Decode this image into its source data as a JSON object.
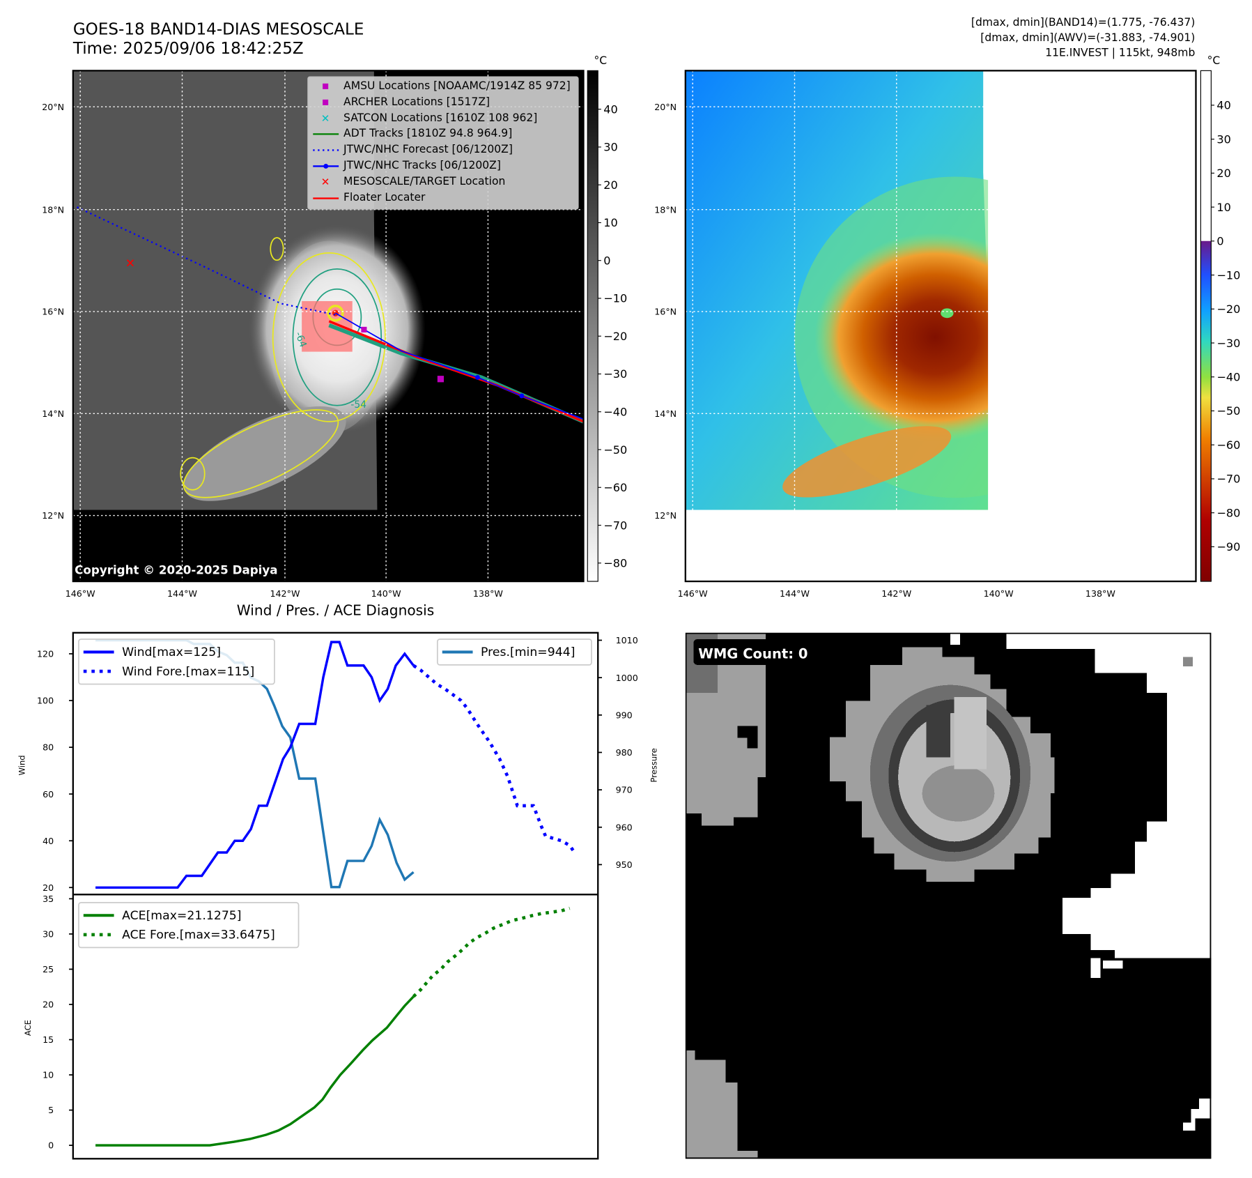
{
  "header": {
    "title": "GOES-18 BAND14-DIAS MESOSCALE",
    "time": "Time: 2025/09/06 18:42:25Z",
    "info": [
      "[dmax, dmin](BAND14)=(1.775, -76.437)",
      "[dmax, dmin](AWV)=(-31.883, -74.901)",
      "11E.INVEST | 115kt, 948mb"
    ]
  },
  "maps": {
    "lat_labels": [
      "20°N",
      "18°N",
      "16°N",
      "14°N",
      "12°N"
    ],
    "lon_labels": [
      "146°W",
      "144°W",
      "142°W",
      "140°W",
      "138°W"
    ],
    "unit": "°C",
    "ir_colorbar_ticks": [
      "40",
      "30",
      "20",
      "10",
      "0",
      "−10",
      "−20",
      "−30",
      "−40",
      "−50",
      "−60",
      "−70",
      "−80"
    ],
    "awv_colorbar_ticks": [
      "40",
      "30",
      "20",
      "10",
      "0",
      "−10",
      "−20",
      "−30",
      "−40",
      "−50",
      "−60",
      "−70",
      "−80",
      "−90"
    ],
    "copyright": "Copyright © 2020-2025 Dapiya",
    "contour_labels": [
      "-64",
      "-54"
    ],
    "legend": [
      {
        "label": "AMSU Locations [NOAAMC/1914Z 85 972]",
        "marker": "square",
        "color": "#c000c0"
      },
      {
        "label": "ARCHER Locations [1517Z]",
        "marker": "square",
        "color": "#c000c0"
      },
      {
        "label": "SATCON Locations [1610Z 108 962]",
        "marker": "x",
        "color": "#00c0c0"
      },
      {
        "label": "ADT Tracks [1810Z 94.8 964.9]",
        "marker": "line",
        "color": "#008000"
      },
      {
        "label": "JTWC/NHC Forecast [06/1200Z]",
        "marker": "dotted",
        "color": "#0000ff"
      },
      {
        "label": "JTWC/NHC Tracks [06/1200Z]",
        "marker": "line-dot",
        "color": "#0000ff"
      },
      {
        "label": "MESOSCALE/TARGET Location",
        "marker": "x",
        "color": "#ff0000"
      },
      {
        "label": "Floater Locater",
        "marker": "line",
        "color": "#ff0000"
      }
    ]
  },
  "wmg": {
    "label": "WMG Count: 0"
  },
  "chart_data": [
    {
      "type": "line",
      "title": "Wind / Pres. / ACE Diagnosis",
      "ylabel": "Wind",
      "y2label": "Pressure",
      "ylim": [
        17,
        129
      ],
      "y2lim": [
        942,
        1012
      ],
      "yticks": [
        "20",
        "40",
        "60",
        "80",
        "100",
        "120"
      ],
      "y2ticks": [
        "950",
        "960",
        "970",
        "980",
        "990",
        "1000",
        "1010"
      ],
      "legend": [
        "Wind[max=125]",
        "Wind Fore.[max=115]",
        "Pres.[min=944]"
      ],
      "colors": {
        "wind": "#0000ff",
        "pres": "#1f77b4"
      },
      "wind": [
        [
          0,
          20
        ],
        [
          10.2,
          20
        ],
        [
          11.3,
          25
        ],
        [
          13.2,
          25
        ],
        [
          15.2,
          35
        ],
        [
          16.3,
          35
        ],
        [
          17.3,
          40
        ],
        [
          18.3,
          40
        ],
        [
          19.3,
          45
        ],
        [
          20.3,
          55
        ],
        [
          21.3,
          55
        ],
        [
          23.3,
          75
        ],
        [
          24.2,
          80
        ],
        [
          25.3,
          90
        ],
        [
          27.3,
          90
        ],
        [
          28.3,
          110
        ],
        [
          29.3,
          125
        ],
        [
          30.3,
          125
        ],
        [
          31.3,
          115
        ],
        [
          33.3,
          115
        ],
        [
          34.3,
          110
        ],
        [
          35.3,
          100
        ],
        [
          36.3,
          105
        ],
        [
          37.3,
          115
        ],
        [
          38.4,
          120
        ],
        [
          39.5,
          115
        ]
      ],
      "wind_forecast": [
        [
          39.5,
          115
        ],
        [
          40.4,
          113
        ],
        [
          42.4,
          107
        ],
        [
          43.4,
          105
        ],
        [
          45.4,
          100
        ],
        [
          46.2,
          96.5
        ],
        [
          47.4,
          90
        ],
        [
          48.2,
          86
        ],
        [
          48.9,
          82.5
        ],
        [
          50.2,
          75
        ],
        [
          51.2,
          67.5
        ],
        [
          52.4,
          55
        ],
        [
          54.4,
          55
        ],
        [
          55.4,
          46
        ],
        [
          55.9,
          42
        ],
        [
          57.9,
          40
        ],
        [
          58.9,
          38
        ],
        [
          59.5,
          35
        ]
      ],
      "pressure": [
        [
          0,
          1010
        ],
        [
          11.3,
          1010
        ],
        [
          12.2,
          1009
        ],
        [
          14.2,
          1009
        ],
        [
          15.2,
          1007
        ],
        [
          16.3,
          1006
        ],
        [
          17.3,
          1004
        ],
        [
          18.3,
          1004
        ],
        [
          19.3,
          1000
        ],
        [
          20.3,
          999
        ],
        [
          21.3,
          997
        ],
        [
          22.2,
          992.5
        ],
        [
          23.2,
          987
        ],
        [
          24.2,
          984
        ],
        [
          25.3,
          973
        ],
        [
          27.3,
          973
        ],
        [
          28.2,
          960
        ],
        [
          29.3,
          944
        ],
        [
          30.3,
          944
        ],
        [
          31.3,
          951
        ],
        [
          33.3,
          951
        ],
        [
          34.3,
          955
        ],
        [
          35.3,
          962
        ],
        [
          36.3,
          958
        ],
        [
          37.4,
          950.5
        ],
        [
          38.4,
          946
        ],
        [
          39.5,
          948
        ]
      ]
    },
    {
      "type": "line",
      "ylabel": "ACE",
      "ylim": [
        -1.9,
        35.6
      ],
      "yticks": [
        "0",
        "5",
        "10",
        "15",
        "20",
        "25",
        "30",
        "35"
      ],
      "legend": [
        "ACE[max=21.1275]",
        "ACE Fore.[max=33.6475]"
      ],
      "color": "#008000",
      "ace": [
        [
          0,
          0
        ],
        [
          14.2,
          0
        ],
        [
          17.2,
          0.5
        ],
        [
          19.2,
          0.9
        ],
        [
          21.2,
          1.5
        ],
        [
          22.7,
          2.1
        ],
        [
          24.2,
          3
        ],
        [
          25.7,
          4.2
        ],
        [
          27.2,
          5.4
        ],
        [
          28.2,
          6.5
        ],
        [
          29.2,
          8.2
        ],
        [
          30.4,
          10
        ],
        [
          31.7,
          11.6
        ],
        [
          33.2,
          13.5
        ],
        [
          34.4,
          14.9
        ],
        [
          36.2,
          16.7
        ],
        [
          37.4,
          18.4
        ],
        [
          38.4,
          19.8
        ],
        [
          39.5,
          21.13
        ]
      ],
      "ace_forecast": [
        [
          39.5,
          21.13
        ],
        [
          40.4,
          22.1
        ],
        [
          41.9,
          24.1
        ],
        [
          42.9,
          25
        ],
        [
          43.7,
          26
        ],
        [
          44.7,
          26.9
        ],
        [
          45.7,
          27.9
        ],
        [
          46.4,
          28.7
        ],
        [
          47.4,
          29.5
        ],
        [
          48.4,
          30.1
        ],
        [
          49.4,
          30.8
        ],
        [
          50.7,
          31.4
        ],
        [
          51.7,
          31.9
        ],
        [
          52.9,
          32.2
        ],
        [
          54.2,
          32.6
        ],
        [
          55.4,
          32.9
        ],
        [
          56.7,
          33.1
        ],
        [
          57.9,
          33.3
        ],
        [
          58.9,
          33.65
        ]
      ]
    }
  ]
}
